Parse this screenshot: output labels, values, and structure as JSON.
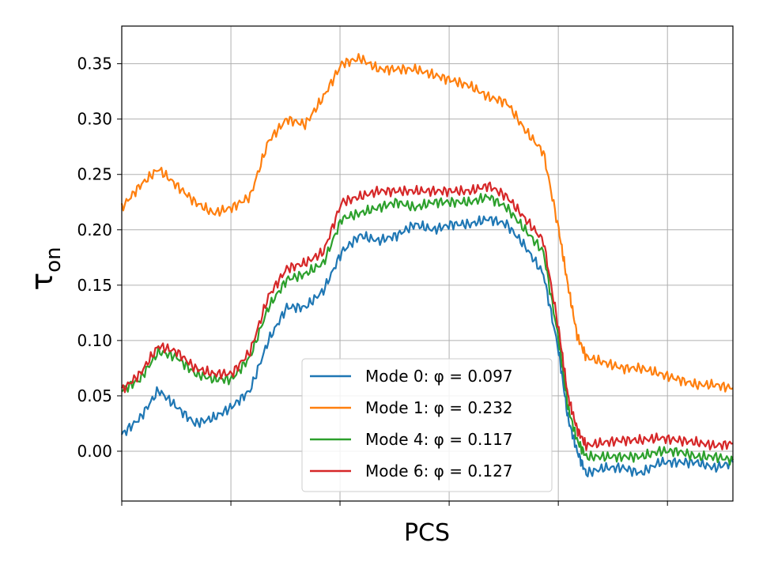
{
  "chart_data": {
    "type": "line",
    "title": "",
    "xlabel": "PCS",
    "ylabel_main": "τ",
    "ylabel_sub": "on",
    "ylim": [
      -0.045,
      0.384
    ],
    "xlim": [
      0,
      1
    ],
    "grid": true,
    "legend_location": "lower-right",
    "yticks": [
      0.0,
      0.05,
      0.1,
      0.15,
      0.2,
      0.25,
      0.3,
      0.35
    ],
    "ytick_labels": [
      "0.00",
      "0.05",
      "0.10",
      "0.15",
      "0.20",
      "0.25",
      "0.30",
      "0.35"
    ],
    "xticks": [
      0,
      0.1786,
      0.3571,
      0.5357,
      0.7143,
      0.8929
    ],
    "x": [
      0.0,
      0.03,
      0.06,
      0.09,
      0.12,
      0.15,
      0.18,
      0.21,
      0.24,
      0.27,
      0.3,
      0.33,
      0.36,
      0.39,
      0.42,
      0.45,
      0.48,
      0.51,
      0.54,
      0.57,
      0.6,
      0.63,
      0.66,
      0.69,
      0.715,
      0.73,
      0.745,
      0.76,
      0.79,
      0.82,
      0.85,
      0.88,
      0.91,
      0.94,
      0.97,
      1.0
    ],
    "series": [
      {
        "name": "Mode 0: φ = 0.097",
        "color": "#1f77b4",
        "values": [
          0.015,
          0.03,
          0.055,
          0.04,
          0.025,
          0.03,
          0.04,
          0.055,
          0.1,
          0.13,
          0.13,
          0.145,
          0.18,
          0.195,
          0.19,
          0.195,
          0.205,
          0.2,
          0.205,
          0.205,
          0.21,
          0.205,
          0.185,
          0.16,
          0.09,
          0.03,
          0.0,
          -0.02,
          -0.015,
          -0.015,
          -0.02,
          -0.01,
          -0.01,
          -0.01,
          -0.015,
          -0.01
        ]
      },
      {
        "name": "Mode 1: φ = 0.232",
        "color": "#ff7f0e",
        "values": [
          0.22,
          0.24,
          0.255,
          0.24,
          0.225,
          0.215,
          0.22,
          0.23,
          0.28,
          0.3,
          0.295,
          0.32,
          0.35,
          0.355,
          0.345,
          0.345,
          0.345,
          0.34,
          0.335,
          0.33,
          0.32,
          0.315,
          0.29,
          0.27,
          0.2,
          0.15,
          0.105,
          0.085,
          0.08,
          0.075,
          0.075,
          0.07,
          0.065,
          0.06,
          0.06,
          0.057
        ]
      },
      {
        "name": "Mode 4: φ = 0.117",
        "color": "#2ca02c",
        "values": [
          0.055,
          0.065,
          0.09,
          0.085,
          0.07,
          0.065,
          0.065,
          0.085,
          0.13,
          0.155,
          0.16,
          0.17,
          0.21,
          0.215,
          0.22,
          0.225,
          0.22,
          0.225,
          0.225,
          0.225,
          0.23,
          0.22,
          0.2,
          0.18,
          0.1,
          0.04,
          0.01,
          -0.005,
          -0.005,
          -0.005,
          -0.005,
          0.0,
          0.0,
          -0.005,
          -0.005,
          -0.008
        ]
      },
      {
        "name": "Mode 6: φ = 0.127",
        "color": "#d62728",
        "values": [
          0.055,
          0.07,
          0.095,
          0.09,
          0.075,
          0.07,
          0.07,
          0.09,
          0.14,
          0.165,
          0.17,
          0.18,
          0.225,
          0.23,
          0.235,
          0.235,
          0.235,
          0.235,
          0.235,
          0.235,
          0.24,
          0.23,
          0.21,
          0.19,
          0.11,
          0.05,
          0.02,
          0.005,
          0.008,
          0.01,
          0.01,
          0.012,
          0.01,
          0.008,
          0.005,
          0.007
        ]
      }
    ]
  }
}
